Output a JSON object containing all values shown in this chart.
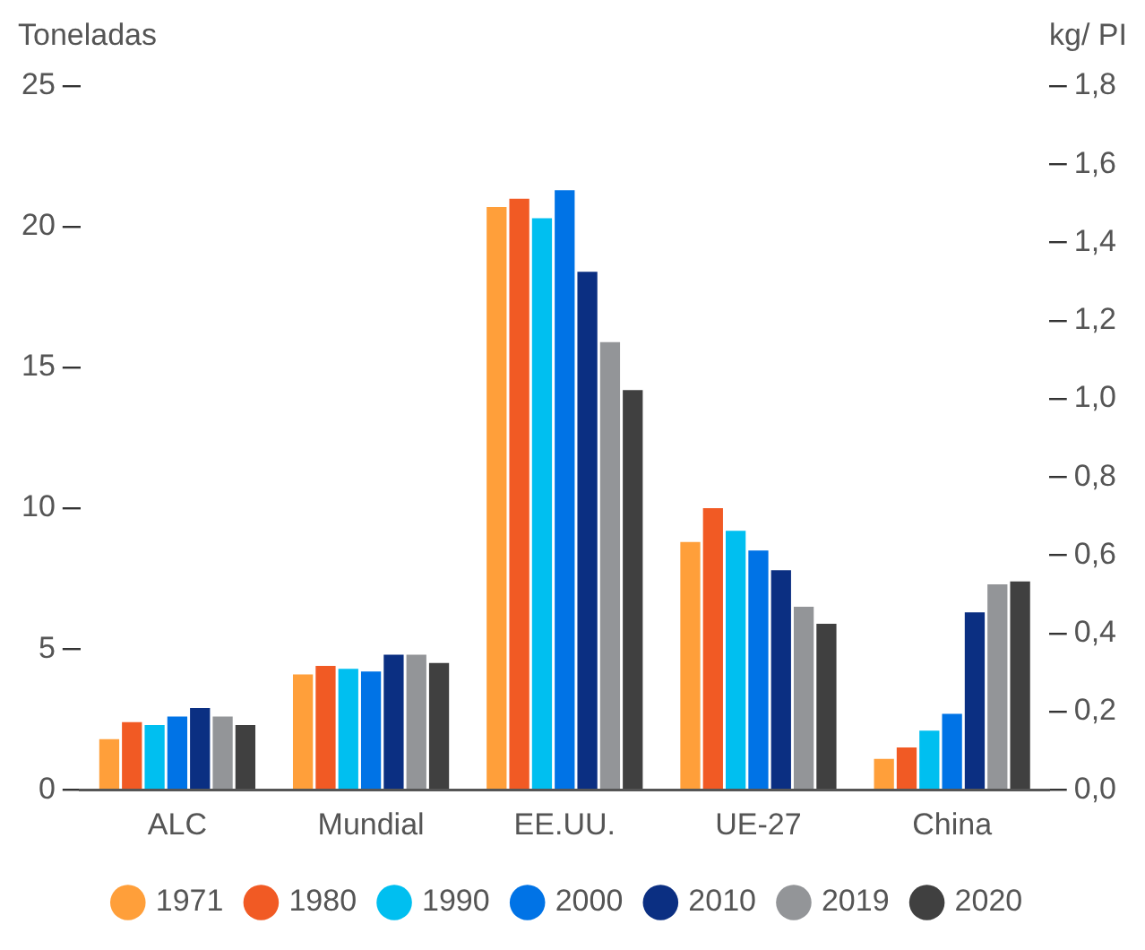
{
  "chart_data": {
    "type": "bar",
    "ylabel": "Toneladas",
    "y2label": "kg/ PI",
    "categories": [
      "ALC",
      "Mundial",
      "EE.UU.",
      "UE-27",
      "China"
    ],
    "series": [
      {
        "name": "1971",
        "color": "#ff9f3a",
        "values": [
          1.8,
          4.1,
          20.7,
          8.8,
          1.1
        ]
      },
      {
        "name": "1980",
        "color": "#f15a24",
        "values": [
          2.4,
          4.4,
          21.0,
          10.0,
          1.5
        ]
      },
      {
        "name": "1990",
        "color": "#00bff0",
        "values": [
          2.3,
          4.3,
          20.3,
          9.2,
          2.1
        ]
      },
      {
        "name": "2000",
        "color": "#0073e6",
        "values": [
          2.6,
          4.2,
          21.3,
          8.5,
          2.7
        ]
      },
      {
        "name": "2010",
        "color": "#0b2f82",
        "values": [
          2.9,
          4.8,
          18.4,
          7.8,
          6.3
        ]
      },
      {
        "name": "2019",
        "color": "#939598",
        "values": [
          2.6,
          4.8,
          15.9,
          6.5,
          7.3
        ]
      },
      {
        "name": "2020",
        "color": "#404040",
        "values": [
          2.3,
          4.5,
          14.2,
          5.9,
          7.4
        ]
      }
    ],
    "ylim": [
      0,
      25
    ],
    "yticks": [
      0,
      5,
      10,
      15,
      20,
      25
    ],
    "y2lim": [
      0,
      1.8
    ],
    "y2ticks": [
      {
        "value": 0,
        "label": "0,0"
      },
      {
        "value": 0.2,
        "label": "0,2"
      },
      {
        "value": 0.4,
        "label": "0,4"
      },
      {
        "value": 0.6,
        "label": "0,6"
      },
      {
        "value": 0.8,
        "label": "0,8"
      },
      {
        "value": 1.0,
        "label": "1,0"
      },
      {
        "value": 1.2,
        "label": "1,2"
      },
      {
        "value": 1.4,
        "label": "1,4"
      },
      {
        "value": 1.6,
        "label": "1,6"
      },
      {
        "value": 1.8,
        "label": "1,8"
      }
    ],
    "grid": false,
    "legend": "bottom"
  }
}
